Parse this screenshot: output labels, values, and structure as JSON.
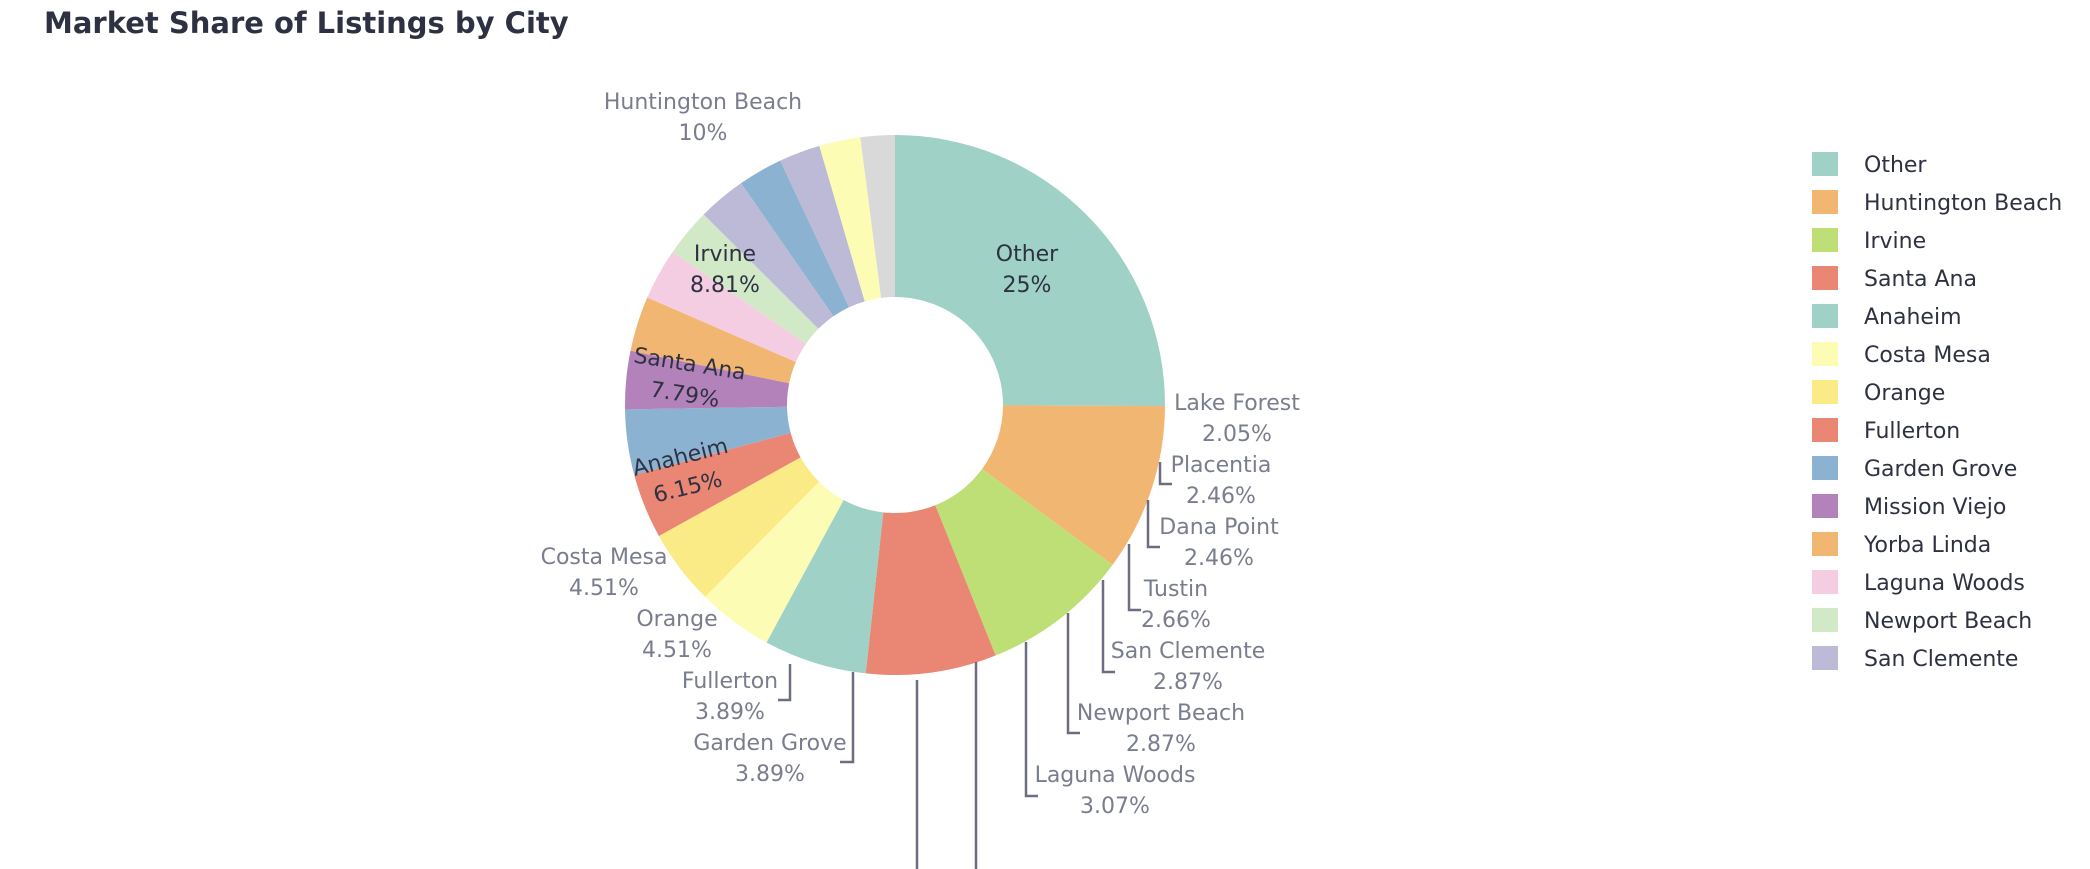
{
  "chart_data": {
    "type": "pie",
    "title": "Market Share of Listings by City",
    "hole": 0.4,
    "colors": {
      "Other": "#9fd1c6",
      "Huntington Beach": "#f1b671",
      "Irvine": "#bedf76",
      "Santa Ana": "#ea8674",
      "Anaheim": "#9fd1c6",
      "Costa Mesa": "#fdfcb4",
      "Orange": "#fbeb87",
      "Fullerton": "#ea8674",
      "Garden Grove": "#8cb2d2",
      "Mission Viejo": "#b482ba",
      "Yorba Linda": "#f1b671",
      "Laguna Woods": "#f5cde2",
      "Newport Beach": "#d2e9c8",
      "San Clemente": "#bdbad8",
      "Tustin": "#8cb2d2",
      "Dana Point": "#bdbad8",
      "Placentia": "#fdfcb4",
      "Lake Forest": "#d9d9d9"
    },
    "slices": [
      {
        "label": "Other",
        "value": 25,
        "text": "25%"
      },
      {
        "label": "Huntington Beach",
        "value": 10,
        "text": "10%"
      },
      {
        "label": "Irvine",
        "value": 8.81,
        "text": "8.81%"
      },
      {
        "label": "Santa Ana",
        "value": 7.79,
        "text": "7.79%"
      },
      {
        "label": "Anaheim",
        "value": 6.15,
        "text": "6.15%"
      },
      {
        "label": "Costa Mesa",
        "value": 4.51,
        "text": "4.51%"
      },
      {
        "label": "Orange",
        "value": 4.51,
        "text": "4.51%"
      },
      {
        "label": "Fullerton",
        "value": 3.89,
        "text": "3.89%"
      },
      {
        "label": "Garden Grove",
        "value": 3.89,
        "text": "3.89%"
      },
      {
        "label": "Mission Viejo",
        "value": 3.48,
        "text": ""
      },
      {
        "label": "Yorba Linda",
        "value": 3.28,
        "text": ""
      },
      {
        "label": "Laguna Woods",
        "value": 3.07,
        "text": "3.07%"
      },
      {
        "label": "Newport Beach",
        "value": 2.87,
        "text": "2.87%"
      },
      {
        "label": "San Clemente",
        "value": 2.87,
        "text": "2.87%"
      },
      {
        "label": "Tustin",
        "value": 2.66,
        "text": "2.66%"
      },
      {
        "label": "Dana Point",
        "value": 2.46,
        "text": "2.46%"
      },
      {
        "label": "Placentia",
        "value": 2.46,
        "text": "2.46%"
      },
      {
        "label": "Lake Forest",
        "value": 2.05,
        "text": "2.05%"
      }
    ],
    "legend_position": "right",
    "legend": [
      "Other",
      "Huntington Beach",
      "Irvine",
      "Santa Ana",
      "Anaheim",
      "Costa Mesa",
      "Orange",
      "Fullerton",
      "Garden Grove",
      "Mission Viejo",
      "Yorba Linda",
      "Laguna Woods",
      "Newport Beach",
      "San Clemente"
    ]
  }
}
